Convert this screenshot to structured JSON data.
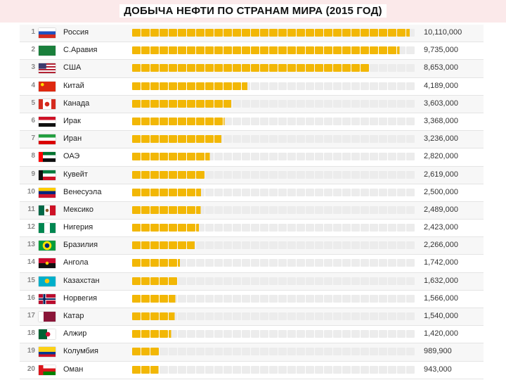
{
  "title": "ДОБЫЧА НЕФТИ ПО СТРАНАМ МИРА (2015 ГОД)",
  "colors": {
    "bar": "#f2b705",
    "bar_empty": "#ececec",
    "title_bg": "#fbe9ea"
  },
  "chart_data": {
    "type": "bar",
    "title": "ДОБЫЧА НЕФТИ ПО СТРАНАМ МИРА (2015 ГОД)",
    "orientation": "horizontal",
    "xlim": [
      0,
      10500000
    ],
    "grid": false,
    "categories": [
      "Россия",
      "С.Аравия",
      "США",
      "Китай",
      "Канада",
      "Ирак",
      "Иран",
      "ОАЭ",
      "Кувейт",
      "Венесуэла",
      "Мексико",
      "Нигерия",
      "Бразилия",
      "Ангола",
      "Казахстан",
      "Норвегия",
      "Катар",
      "Алжир",
      "Колумбия",
      "Оман"
    ],
    "ranks": [
      "1",
      "2",
      "3",
      "4",
      "5",
      "6",
      "7",
      "8",
      "9",
      "10",
      "11",
      "12",
      "13",
      "14",
      "15",
      "16",
      "17",
      "18",
      "19",
      "20"
    ],
    "flags": [
      "russia-flag-icon",
      "saudi-arabia-flag-icon",
      "usa-flag-icon",
      "china-flag-icon",
      "canada-flag-icon",
      "iraq-flag-icon",
      "iran-flag-icon",
      "uae-flag-icon",
      "kuwait-flag-icon",
      "venezuela-flag-icon",
      "mexico-flag-icon",
      "nigeria-flag-icon",
      "brazil-flag-icon",
      "angola-flag-icon",
      "kazakhstan-flag-icon",
      "norway-flag-icon",
      "qatar-flag-icon",
      "algeria-flag-icon",
      "colombia-flag-icon",
      "oman-flag-icon"
    ],
    "values": [
      10110000,
      9735000,
      8653000,
      4189000,
      3603000,
      3368000,
      3236000,
      2820000,
      2619000,
      2500000,
      2489000,
      2423000,
      2266000,
      1742000,
      1632000,
      1566000,
      1540000,
      1420000,
      989900,
      943000
    ],
    "value_labels": [
      "10,110,000",
      "9,735,000",
      "8,653,000",
      "4,189,000",
      "3,603,000",
      "3,368,000",
      "3,236,000",
      "2,820,000",
      "2,619,000",
      "2,500,000",
      "2,489,000",
      "2,423,000",
      "2,266,000",
      "1,742,000",
      "1,632,000",
      "1,566,000",
      "1,540,000",
      "1,420,000",
      "989,900",
      "943,000"
    ]
  }
}
